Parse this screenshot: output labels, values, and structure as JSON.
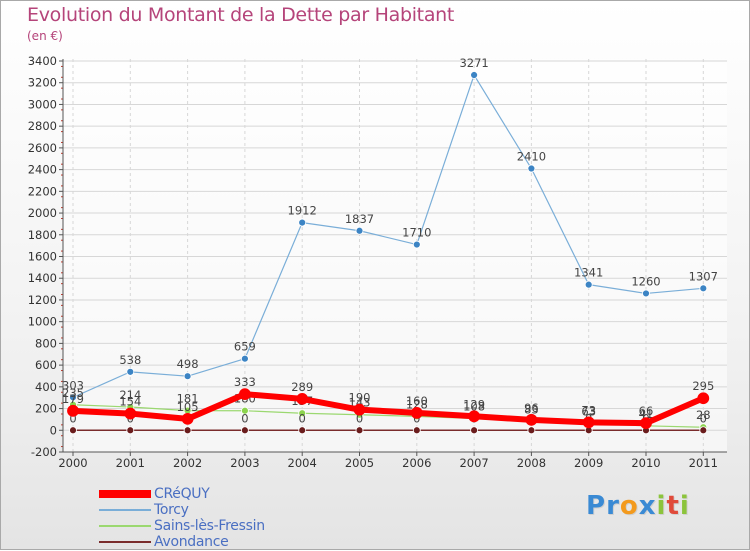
{
  "title": "Evolution du Montant de la Dette par Habitant",
  "subtitle": "(en €)",
  "logo": {
    "text": "Proxiti",
    "letters": [
      {
        "ch": "P",
        "color": "#3a8ad4"
      },
      {
        "ch": "r",
        "color": "#3a8ad4"
      },
      {
        "ch": "o",
        "color": "#f39a1d"
      },
      {
        "ch": "x",
        "color": "#3a8ad4"
      },
      {
        "ch": "i",
        "color": "#8cc43c"
      },
      {
        "ch": "t",
        "color": "#e04a3a"
      },
      {
        "ch": "i",
        "color": "#8cc43c"
      }
    ]
  },
  "chart_data": {
    "type": "line",
    "title": "Evolution du Montant de la Dette par Habitant",
    "ylabel": "(en €)",
    "ylim": [
      -200,
      3400
    ],
    "yticks": [
      -200,
      0,
      200,
      400,
      600,
      800,
      1000,
      1200,
      1400,
      1600,
      1800,
      2000,
      2200,
      2400,
      2600,
      2800,
      3000,
      3200,
      3400
    ],
    "categories": [
      "2000",
      "2001",
      "2002",
      "2003",
      "2004",
      "2005",
      "2006",
      "2007",
      "2008",
      "2009",
      "2010",
      "2011"
    ],
    "grid": true,
    "legend_position": "bottom-left",
    "series": [
      {
        "name": "Torcy",
        "color": "#7aaed8",
        "marker": "#3c84c4",
        "width": 1.2,
        "values": [
          303,
          538,
          498,
          659,
          1912,
          1837,
          1710,
          3271,
          2410,
          1341,
          1260,
          1307
        ]
      },
      {
        "name": "Sains-lès-Fressin",
        "color": "#9bd870",
        "marker": "#8cd44e",
        "width": 1.2,
        "values": [
          235,
          214,
          181,
          180,
          157,
          143,
          128,
          108,
          83,
          63,
          41,
          28
        ]
      },
      {
        "name": "Avondance",
        "color": "#7a2c2c",
        "marker": "#6a1c1c",
        "width": 1.5,
        "values": [
          0,
          0,
          0,
          0,
          0,
          0,
          0,
          0,
          0,
          0,
          0,
          0
        ]
      },
      {
        "name": "CRéQUY",
        "color": "#ff0000",
        "marker": "#ff0000",
        "width": 6,
        "values": [
          179,
          154,
          105,
          333,
          289,
          190,
          160,
          129,
          96,
          73,
          66,
          295
        ]
      }
    ],
    "legend_order": [
      "CRéQUY",
      "Torcy",
      "Sains-lès-Fressin",
      "Avondance"
    ]
  }
}
